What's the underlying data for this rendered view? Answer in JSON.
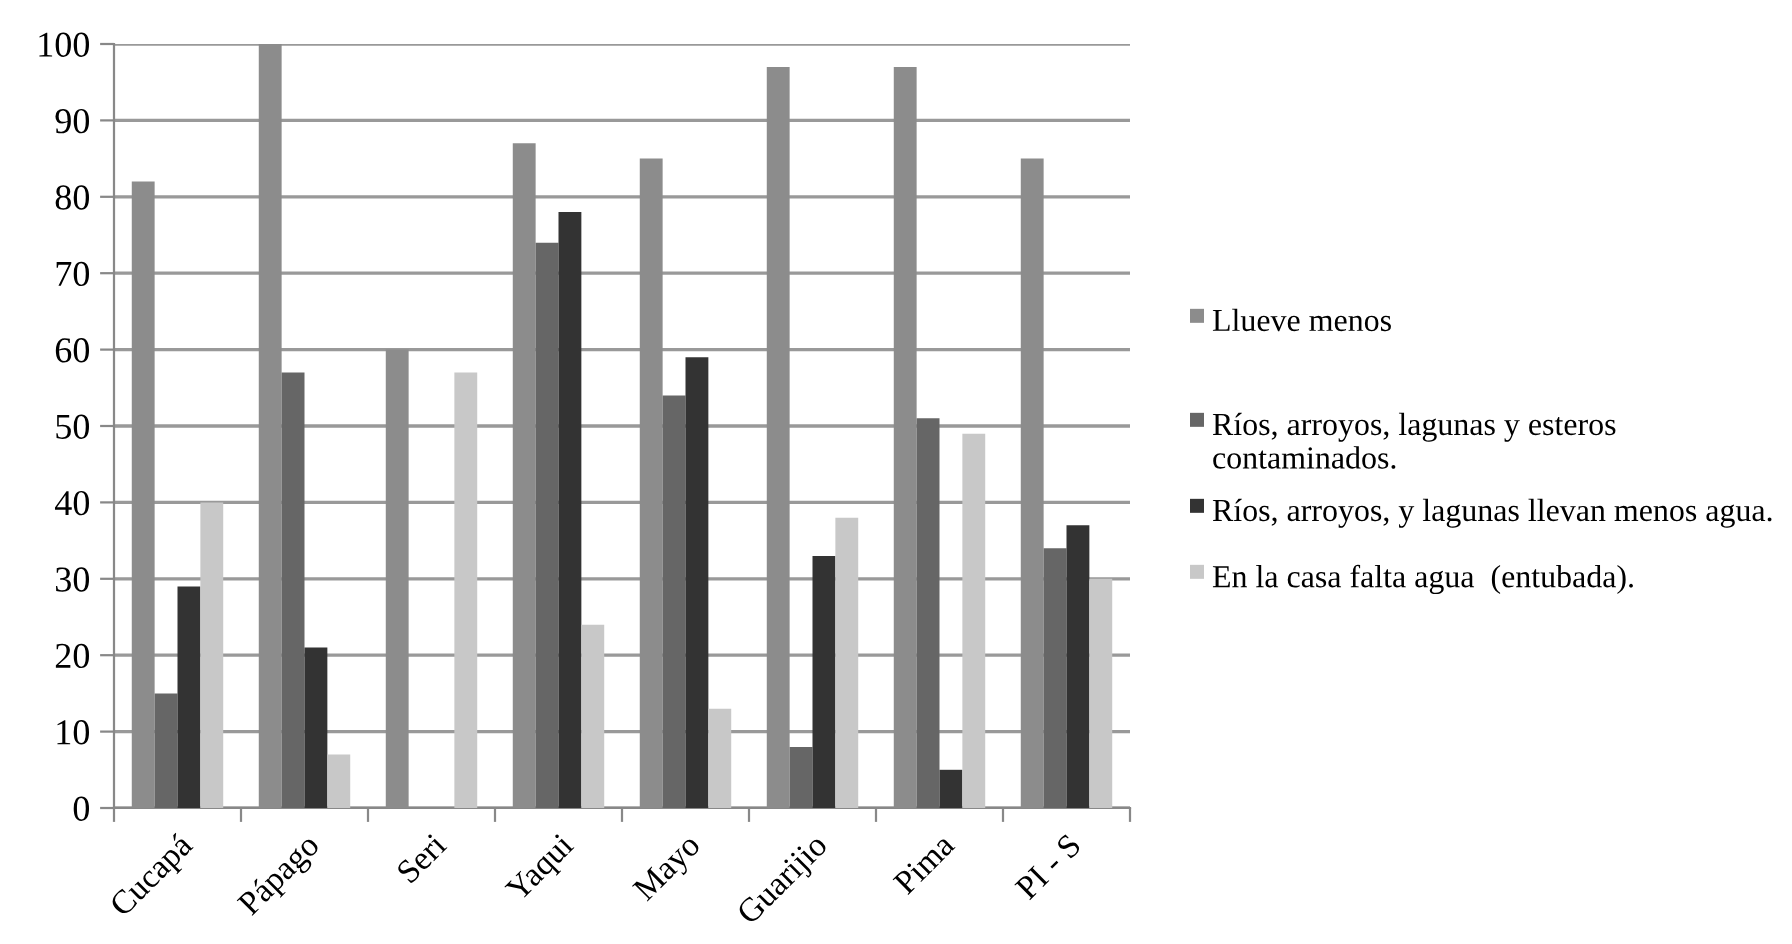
{
  "chart_data": {
    "type": "bar",
    "categories": [
      "Cucapá",
      "Pápago",
      "Seri",
      "Yaqui",
      "Mayo",
      "Guarijio",
      "Pima",
      "PI - S"
    ],
    "series": [
      {
        "name": "Llueve menos",
        "color": "#8c8c8c",
        "values": [
          82,
          100,
          60,
          87,
          85,
          97,
          97,
          85
        ]
      },
      {
        "name": "Ríos, arroyos, lagunas y esteros contaminados.",
        "color": "#666666",
        "values": [
          15,
          57,
          0,
          74,
          54,
          8,
          51,
          34
        ]
      },
      {
        "name": "Ríos, arroyos, y lagunas llevan menos agua.",
        "color": "#333333",
        "values": [
          29,
          21,
          0,
          78,
          59,
          33,
          5,
          37
        ]
      },
      {
        "name": "En la casa falta agua  (entubada).",
        "color": "#c8c8c8",
        "values": [
          40,
          7,
          57,
          24,
          13,
          38,
          49,
          30
        ]
      }
    ],
    "ylim": [
      0,
      100
    ],
    "yticks": [
      0,
      10,
      20,
      30,
      40,
      50,
      60,
      70,
      80,
      90,
      100
    ],
    "grid": "y",
    "legend": "right"
  }
}
